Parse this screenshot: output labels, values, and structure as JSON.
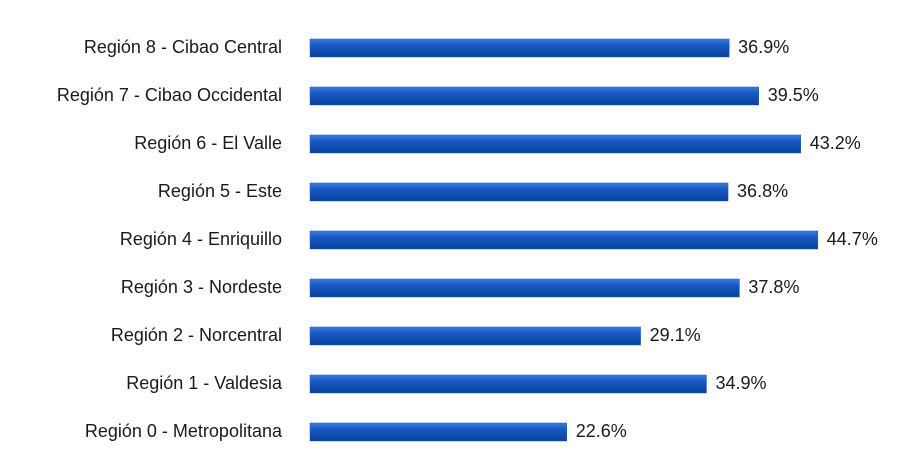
{
  "chart_data": {
    "type": "bar",
    "orientation": "horizontal",
    "categories": [
      "Región 8 - Cibao Central",
      "Región 7 - Cibao Occidental",
      "Región 6 - El Valle",
      "Región 5 - Este",
      "Región 4 - Enriquillo",
      "Región 3 - Nordeste",
      "Región 2 - Norcentral",
      "Región 1 - Valdesia",
      "Región 0 - Metropolitana"
    ],
    "values": [
      36.9,
      39.5,
      43.2,
      36.8,
      44.7,
      37.8,
      29.1,
      34.9,
      22.6
    ],
    "value_labels": [
      "36.9%",
      "39.5%",
      "43.2%",
      "36.8%",
      "44.7%",
      "37.8%",
      "29.1%",
      "34.9%",
      "22.6%"
    ],
    "color": "#1659c4"
  }
}
